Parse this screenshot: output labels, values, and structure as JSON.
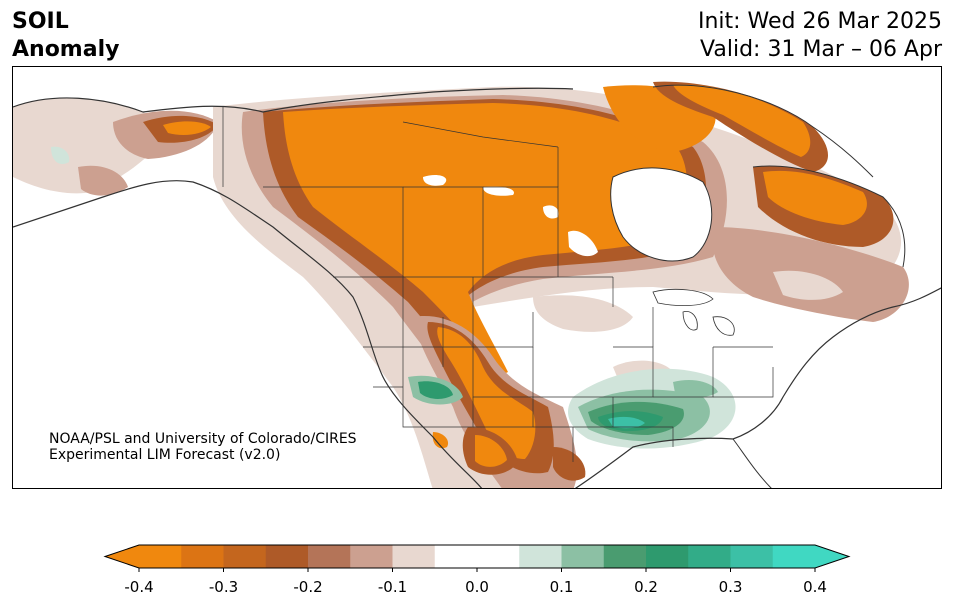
{
  "title": {
    "line1": "SOIL",
    "line2": "Anomaly"
  },
  "dates": {
    "init": "Init: Wed 26 Mar 2025",
    "valid": "Valid: 31 Mar – 06 Apr"
  },
  "credit": {
    "line1": "NOAA/PSL and University of Colorado/CIRES",
    "line2": "Experimental LIM Forecast (v2.0)"
  },
  "colorbar": {
    "levels": [
      -0.4,
      -0.35,
      -0.3,
      -0.25,
      -0.2,
      -0.15,
      -0.1,
      -0.05,
      0.05,
      0.1,
      0.15,
      0.2,
      0.25,
      0.3,
      0.35,
      0.4
    ],
    "colors": [
      "#f0880e",
      "#dc7414",
      "#c4661e",
      "#ae5a28",
      "#b47458",
      "#cca090",
      "#e8d8d0",
      "#ffffff",
      "#d0e4da",
      "#8cc0a4",
      "#4a9c70",
      "#2e9a6e",
      "#32ac88",
      "#3cc0a6",
      "#40d8c2"
    ],
    "under_color": "#f0880e",
    "over_color": "#40d8c2",
    "tick_labels": [
      "-0.4",
      "-0.3",
      "-0.2",
      "-0.1",
      "0.0",
      "0.1",
      "0.2",
      "0.3",
      "0.4"
    ],
    "tick_values": [
      -0.4,
      -0.3,
      -0.2,
      -0.1,
      0.0,
      0.1,
      0.2,
      0.3,
      0.4
    ]
  }
}
